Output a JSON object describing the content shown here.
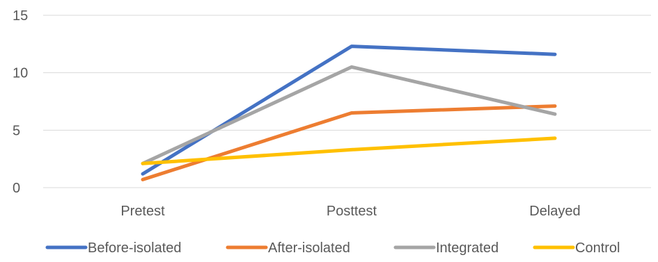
{
  "chart_data": {
    "type": "line",
    "categories": [
      "Pretest",
      "Posttest",
      "Delayed"
    ],
    "series": [
      {
        "name": "Before-isolated",
        "color": "#4472C4",
        "values": [
          1.2,
          12.3,
          11.6
        ]
      },
      {
        "name": "After-isolated",
        "color": "#ED7D31",
        "values": [
          0.7,
          6.5,
          7.1
        ]
      },
      {
        "name": "Integrated",
        "color": "#A5A5A5",
        "values": [
          2.1,
          10.5,
          6.4
        ]
      },
      {
        "name": "Control",
        "color": "#FFC000",
        "values": [
          2.1,
          3.3,
          4.3
        ]
      }
    ],
    "y_ticks": [
      "0",
      "5",
      "10",
      "15"
    ],
    "ylim": [
      0,
      15
    ],
    "grid": true,
    "legend_position": "bottom",
    "gridline_color": "#D9D9D9",
    "label_color": "#595959"
  }
}
